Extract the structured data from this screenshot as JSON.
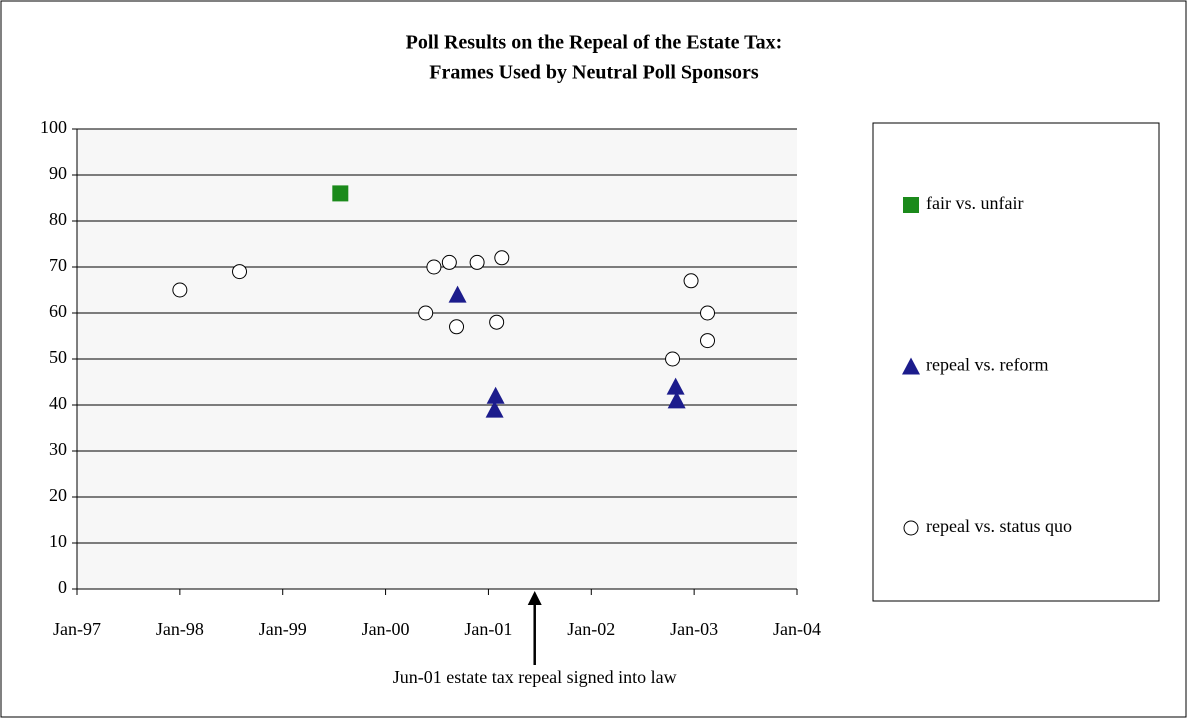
{
  "chart_data": {
    "type": "scatter",
    "title": [
      "Poll Results on the Repeal of the Estate Tax:",
      "Frames Used by Neutral Poll Sponsors"
    ],
    "series": [
      {
        "name": "fair vs. unfair",
        "color": "#1b8a1b",
        "marker": "square",
        "x": [
          1999.56
        ],
        "values": [
          86
        ]
      },
      {
        "name": "repeal vs. reform",
        "color": "#1c1c8c",
        "marker": "triangle",
        "x": [
          2000.7,
          2001.07,
          2001.06,
          2002.82,
          2002.83
        ],
        "values": [
          64,
          42,
          39,
          44,
          41
        ]
      },
      {
        "name": "repeal vs. status quo",
        "color": "#ffffff",
        "marker": "circle",
        "x": [
          1998.0,
          1998.58,
          2000.39,
          2000.47,
          2000.62,
          2000.69,
          2000.89,
          2001.08,
          2001.13,
          2002.79,
          2002.97,
          2003.13,
          2003.13
        ],
        "values": [
          65,
          69,
          60,
          70,
          71,
          57,
          71,
          58,
          72,
          50,
          67,
          60,
          54
        ]
      }
    ],
    "xlim": [
      1997,
      2004
    ],
    "xticks": [
      {
        "value": 1997,
        "label": "Jan-97"
      },
      {
        "value": 1998,
        "label": "Jan-98"
      },
      {
        "value": 1999,
        "label": "Jan-99"
      },
      {
        "value": 2000,
        "label": "Jan-00"
      },
      {
        "value": 2001,
        "label": "Jan-01"
      },
      {
        "value": 2002,
        "label": "Jan-02"
      },
      {
        "value": 2003,
        "label": "Jan-03"
      },
      {
        "value": 2004,
        "label": "Jan-04"
      }
    ],
    "ylim": [
      0,
      100
    ],
    "yticks": [
      0,
      10,
      20,
      30,
      40,
      50,
      60,
      70,
      80,
      90,
      100
    ],
    "grid": true,
    "legend": "right",
    "annotation": {
      "text": "Jun-01 estate tax repeal signed into law",
      "x": 2001.45
    }
  }
}
